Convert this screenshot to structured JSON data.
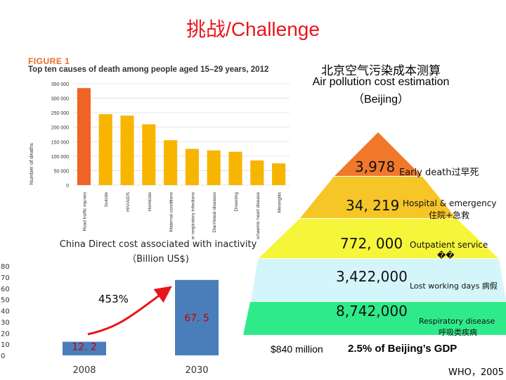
{
  "slide": {
    "title": "挑战/Challenge",
    "source": "WHO，2005"
  },
  "chart_data": [
    {
      "type": "bar",
      "figure_label": "FIGURE 1",
      "title": "Top ten causes of death among people aged 15–29 years, 2012",
      "ylabel": "Number of deaths",
      "yticks": [
        "0",
        "50 000",
        "100 000",
        "150 000",
        "200 000",
        "250 000",
        "300 000",
        "350 000"
      ],
      "ylim": [
        0,
        350000
      ],
      "categories": [
        "Road traffic injuries",
        "Suicide",
        "HIV/AIDS",
        "Homicide",
        "Maternal conditions",
        "Lower respiratory infections",
        "Diarrhoeal diseases",
        "Drowning",
        "Ischaemic heart disease",
        "Meningitis"
      ],
      "values": [
        335000,
        245000,
        240000,
        210000,
        155000,
        125000,
        120000,
        115000,
        85000,
        75000
      ],
      "colors": {
        "first": "#ef6424",
        "rest": "#f7b500"
      },
      "grid": true
    },
    {
      "type": "pyramid",
      "title_cn": "北京空气污染成本测算",
      "title_en": "Air pollution cost estimation",
      "title_paren": "（Beijing）",
      "levels": [
        {
          "value": "3,978",
          "label": "Early death过早死",
          "color": "#f0782b"
        },
        {
          "value": "34, 219",
          "label": "Hospital & emergency",
          "label2": "住院+急救",
          "color": "#f6c628"
        },
        {
          "value": "772, 000",
          "label": "Outpatient service",
          "label2": "��",
          "color": "#f5f53a"
        },
        {
          "value": "3,422,000",
          "label": "Lost working days 病假",
          "color": "#d4f5f9"
        },
        {
          "value": "8,742,000",
          "label": "Respiratory disease",
          "label2": "呼吸类疾病",
          "color": "#2fea8a"
        }
      ],
      "footer_money": "$840 million",
      "footer_gdp": "2.5% of Beijing’s GDP"
    },
    {
      "type": "bar",
      "title": "China Direct cost associated with inactivity",
      "subtitle": "（Billion US$)",
      "categories": [
        "2008",
        "2030"
      ],
      "values": [
        12.2,
        67.5
      ],
      "value_labels": [
        "12. 2",
        "67. 5"
      ],
      "yticks": [
        "0",
        "10",
        "20",
        "30",
        "40",
        "50",
        "60",
        "70",
        "80"
      ],
      "ylim": [
        0,
        80
      ],
      "annotation": "453%",
      "colors": {
        "bar": "#4a7ebb",
        "label": "#c00000",
        "arrow": "#e8161c"
      }
    }
  ]
}
